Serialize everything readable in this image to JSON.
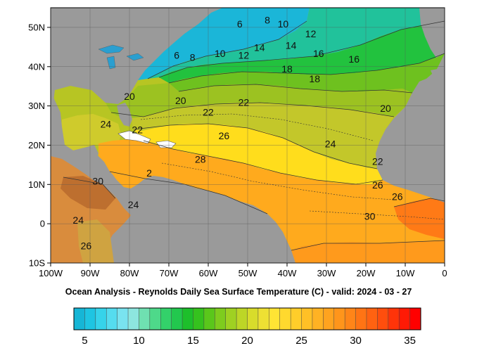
{
  "title": "Ocean Analysis - Reynolds Daily Sea Surface Temperature (C) - valid: 2024 - 03 - 27",
  "map": {
    "lon_range": [
      -100,
      0
    ],
    "lat_range": [
      -10,
      55
    ],
    "lon_ticks": [
      "100W",
      "90W",
      "80W",
      "70W",
      "60W",
      "50W",
      "40W",
      "30W",
      "20W",
      "10W",
      "0"
    ],
    "lat_ticks": [
      "50N",
      "40N",
      "30N",
      "20N",
      "10N",
      "0",
      "10S"
    ],
    "land_color": "#999999",
    "grid": true
  },
  "contour_labels": [
    {
      "text": "6",
      "lon": -52,
      "lat": 50
    },
    {
      "text": "8",
      "lon": -45,
      "lat": 51
    },
    {
      "text": "10",
      "lon": -41,
      "lat": 50
    },
    {
      "text": "12",
      "lon": -34,
      "lat": 47.5
    },
    {
      "text": "6",
      "lon": -68,
      "lat": 42
    },
    {
      "text": "8",
      "lon": -64,
      "lat": 41.5
    },
    {
      "text": "10",
      "lon": -57,
      "lat": 42.5
    },
    {
      "text": "12",
      "lon": -51,
      "lat": 42
    },
    {
      "text": "14",
      "lon": -47,
      "lat": 44
    },
    {
      "text": "14",
      "lon": -39,
      "lat": 44.5
    },
    {
      "text": "16",
      "lon": -32,
      "lat": 42.5
    },
    {
      "text": "16",
      "lon": -23,
      "lat": 41
    },
    {
      "text": "18",
      "lon": -40,
      "lat": 38.5
    },
    {
      "text": "18",
      "lon": -33,
      "lat": 36
    },
    {
      "text": "20",
      "lon": -80,
      "lat": 31.5
    },
    {
      "text": "20",
      "lon": -67,
      "lat": 30.5
    },
    {
      "text": "22",
      "lon": -60,
      "lat": 27.5
    },
    {
      "text": "22",
      "lon": -51,
      "lat": 30
    },
    {
      "text": "20",
      "lon": -15,
      "lat": 28.5
    },
    {
      "text": "24",
      "lon": -86,
      "lat": 24.5
    },
    {
      "text": "22",
      "lon": -78,
      "lat": 23
    },
    {
      "text": "26",
      "lon": -56,
      "lat": 21.5
    },
    {
      "text": "24",
      "lon": -29,
      "lat": 19.5
    },
    {
      "text": "28",
      "lon": -62,
      "lat": 15.5
    },
    {
      "text": "22",
      "lon": -17,
      "lat": 15
    },
    {
      "text": "26",
      "lon": -17,
      "lat": 9
    },
    {
      "text": "26",
      "lon": -12,
      "lat": 6
    },
    {
      "text": "30",
      "lon": -88,
      "lat": 10
    },
    {
      "text": "2",
      "lon": -75,
      "lat": 12
    },
    {
      "text": "24",
      "lon": -79,
      "lat": 4
    },
    {
      "text": "24",
      "lon": -93,
      "lat": 0
    },
    {
      "text": "30",
      "lon": -19,
      "lat": 1
    },
    {
      "text": "26",
      "lon": -91,
      "lat": -6.5
    }
  ],
  "colorbar": {
    "labels": [
      "5",
      "10",
      "15",
      "20",
      "25",
      "30",
      "35"
    ],
    "label_values": [
      5,
      10,
      15,
      20,
      25,
      30,
      35
    ],
    "range": [
      4,
      36
    ],
    "colors": [
      "#16b6d6",
      "#1ec5e2",
      "#36d3ea",
      "#55dcef",
      "#79e3ef",
      "#8de6df",
      "#6fe0b1",
      "#4ed98a",
      "#33d16a",
      "#22c84e",
      "#1dbf2b",
      "#35c21e",
      "#5ac71b",
      "#7ecc1e",
      "#9fd122",
      "#bdd626",
      "#d8dc2b",
      "#eee033",
      "#ffe434",
      "#ffd92e",
      "#ffcd2a",
      "#ffc026",
      "#ffb223",
      "#ffa31f",
      "#ff951b",
      "#ff8518",
      "#ff7414",
      "#ff6211",
      "#ff4e0d",
      "#ff3409",
      "#ff1a05",
      "#ff0000"
    ]
  },
  "sst_palette": {
    "cold": "#1bb2d6",
    "c12": "#24bfa0",
    "c14": "#1dbb36",
    "c16": "#4ebd1f",
    "c18": "#7cbf1e",
    "c20": "#98c21f",
    "c22": "#b2c526",
    "c24": "#d4d22c",
    "c26": "#ffdc1f",
    "c28": "#ffbf22",
    "c30": "#ffa820",
    "warm_bands": "#ff8a1a",
    "hot": "#ff6a15",
    "pacific_warm": "#d7893a",
    "pacific_hot": "#b86a2e"
  }
}
